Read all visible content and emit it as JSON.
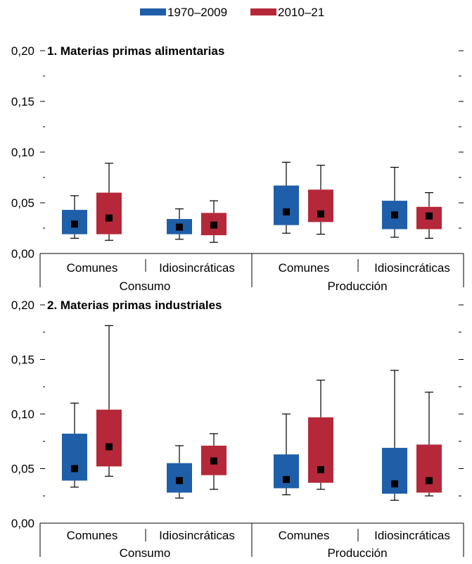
{
  "colors": {
    "series1": "#1F5EA8",
    "series2": "#B5283A",
    "median": "#000000",
    "axis": "#000000"
  },
  "legend": [
    {
      "name": "1970–2009"
    },
    {
      "name": "2010–21"
    }
  ],
  "chart_data": [
    {
      "type": "box",
      "title": "1. Materias primas alimentarias",
      "ylim": [
        0,
        0.2
      ],
      "yticks": [
        "0,00",
        "0,05",
        "0,10",
        "0,15",
        "0,20"
      ],
      "groups": [
        "Consumo",
        "Producción"
      ],
      "categories": [
        "Comunes",
        "Idiosincráticas",
        "Comunes",
        "Idiosincráticas"
      ],
      "series": [
        {
          "name": "1970–2009",
          "boxes": [
            {
              "min": 0.015,
              "q1": 0.019,
              "median": 0.029,
              "q3": 0.043,
              "max": 0.057
            },
            {
              "min": 0.014,
              "q1": 0.019,
              "median": 0.026,
              "q3": 0.034,
              "max": 0.044
            },
            {
              "min": 0.02,
              "q1": 0.028,
              "median": 0.041,
              "q3": 0.067,
              "max": 0.09
            },
            {
              "min": 0.016,
              "q1": 0.024,
              "median": 0.038,
              "q3": 0.052,
              "max": 0.085
            }
          ]
        },
        {
          "name": "2010–21",
          "boxes": [
            {
              "min": 0.013,
              "q1": 0.019,
              "median": 0.035,
              "q3": 0.06,
              "max": 0.089
            },
            {
              "min": 0.011,
              "q1": 0.018,
              "median": 0.028,
              "q3": 0.04,
              "max": 0.052
            },
            {
              "min": 0.019,
              "q1": 0.031,
              "median": 0.039,
              "q3": 0.063,
              "max": 0.087
            },
            {
              "min": 0.015,
              "q1": 0.024,
              "median": 0.037,
              "q3": 0.046,
              "max": 0.06
            }
          ]
        }
      ]
    },
    {
      "type": "box",
      "title": "2. Materias primas industriales",
      "ylim": [
        0,
        0.2
      ],
      "yticks": [
        "0,00",
        "0,05",
        "0,10",
        "0,15",
        "0,20"
      ],
      "groups": [
        "Consumo",
        "Producción"
      ],
      "categories": [
        "Comunes",
        "Idiosincráticas",
        "Comunes",
        "Idiosincráticas"
      ],
      "series": [
        {
          "name": "1970–2009",
          "boxes": [
            {
              "min": 0.033,
              "q1": 0.039,
              "median": 0.05,
              "q3": 0.082,
              "max": 0.11
            },
            {
              "min": 0.023,
              "q1": 0.028,
              "median": 0.039,
              "q3": 0.055,
              "max": 0.071
            },
            {
              "min": 0.026,
              "q1": 0.032,
              "median": 0.04,
              "q3": 0.063,
              "max": 0.1
            },
            {
              "min": 0.021,
              "q1": 0.027,
              "median": 0.036,
              "q3": 0.069,
              "max": 0.14
            }
          ]
        },
        {
          "name": "2010–21",
          "boxes": [
            {
              "min": 0.043,
              "q1": 0.052,
              "median": 0.07,
              "q3": 0.104,
              "max": 0.181
            },
            {
              "min": 0.031,
              "q1": 0.044,
              "median": 0.057,
              "q3": 0.071,
              "max": 0.082
            },
            {
              "min": 0.031,
              "q1": 0.037,
              "median": 0.049,
              "q3": 0.097,
              "max": 0.131
            },
            {
              "min": 0.025,
              "q1": 0.028,
              "median": 0.039,
              "q3": 0.072,
              "max": 0.12
            }
          ]
        }
      ]
    }
  ]
}
